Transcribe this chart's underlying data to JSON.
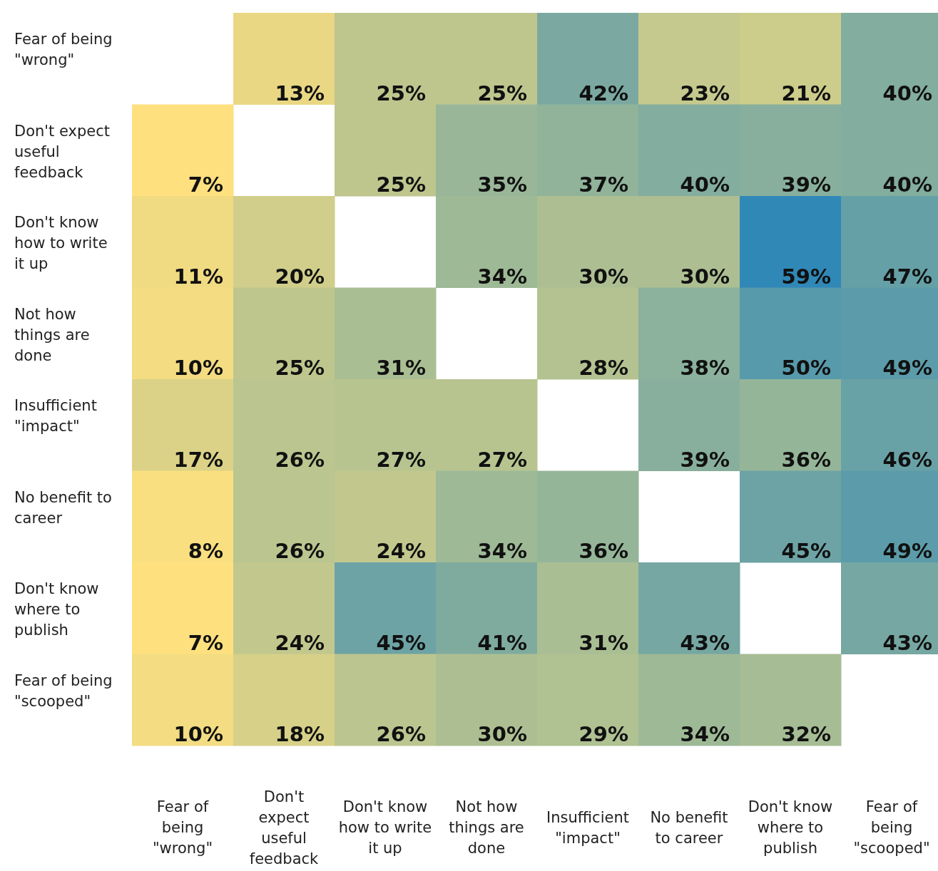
{
  "chart_data": {
    "type": "heatmap",
    "categories": [
      "Fear of being \"wrong\"",
      "Don't expect useful feedback",
      "Don't know how to write it up",
      "Not how things are done",
      "Insufficient \"impact\"",
      "No benefit to career",
      "Don't know where to publish",
      "Fear of being \"scooped\""
    ],
    "y_categories": [
      "Fear of being \"wrong\"",
      "Don't expect useful feedback",
      "Don't know how to write it up",
      "Not how things are done",
      "Insufficient \"impact\"",
      "No benefit to career",
      "Don't know where to publish",
      "Fear of being \"scooped\""
    ],
    "cells": [
      [
        null,
        13,
        25,
        25,
        42,
        23,
        21,
        40
      ],
      [
        7,
        null,
        25,
        35,
        37,
        40,
        39,
        40
      ],
      [
        11,
        20,
        null,
        34,
        30,
        30,
        59,
        47
      ],
      [
        10,
        25,
        31,
        null,
        28,
        38,
        50,
        49
      ],
      [
        17,
        26,
        27,
        27,
        null,
        39,
        36,
        46
      ],
      [
        8,
        26,
        24,
        34,
        36,
        null,
        45,
        49
      ],
      [
        7,
        24,
        45,
        41,
        31,
        43,
        null,
        43
      ],
      [
        10,
        18,
        26,
        30,
        29,
        34,
        32,
        null
      ]
    ],
    "cell_labels": [
      [
        null,
        "13%",
        "25%",
        "25%",
        "42%",
        "23%",
        "21%",
        "40%"
      ],
      [
        "7%",
        null,
        "25%",
        "35%",
        "37%",
        "40%",
        "39%",
        "40%"
      ],
      [
        "11%",
        "20%",
        null,
        "34%",
        "30%",
        "30%",
        "59%",
        "47%"
      ],
      [
        "10%",
        "25%",
        "31%",
        null,
        "28%",
        "38%",
        "50%",
        "49%"
      ],
      [
        "17%",
        "26%",
        "27%",
        "27%",
        null,
        "39%",
        "36%",
        "46%"
      ],
      [
        "8%",
        "26%",
        "24%",
        "34%",
        "36%",
        null,
        "45%",
        "49%"
      ],
      [
        "7%",
        "24%",
        "45%",
        "41%",
        "31%",
        "43%",
        null,
        "43%"
      ],
      [
        "10%",
        "18%",
        "26%",
        "30%",
        "29%",
        "34%",
        "32%",
        null
      ]
    ]
  }
}
